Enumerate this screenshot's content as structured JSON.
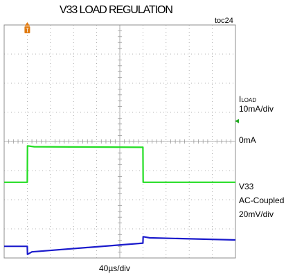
{
  "chart_data": {
    "type": "line",
    "title": "V33 LOAD REGULATION",
    "tag": "toc24",
    "x_scale": "40µs/div",
    "x_divisions": 10,
    "y_divisions": 8,
    "grid": true,
    "trigger_marker": "T",
    "series": [
      {
        "name": "ILOAD",
        "color": "#22dd22",
        "scale_sub": "LOAD",
        "scale_prefix": "I",
        "scale": "10mA/div",
        "zero_label": "0mA",
        "unit": "mA",
        "baseline_div": 5.4,
        "x": [
          0,
          1.0,
          1.01,
          1.3,
          6.0,
          6.01,
          10
        ],
        "y": [
          0,
          0,
          12.5,
          12.2,
          12.0,
          0,
          0
        ]
      },
      {
        "name": "V33",
        "color": "#1a1acc",
        "label_lines": [
          "V33",
          "AC-Coupled",
          "20mV/div"
        ],
        "unit": "mV",
        "baseline_div": 7.6,
        "x": [
          0,
          1.0,
          1.01,
          1.2,
          6.0,
          6.01,
          6.3,
          10
        ],
        "y": [
          0,
          0,
          -5.5,
          -3.8,
          2.2,
          6.6,
          5.8,
          4.4
        ]
      }
    ]
  }
}
